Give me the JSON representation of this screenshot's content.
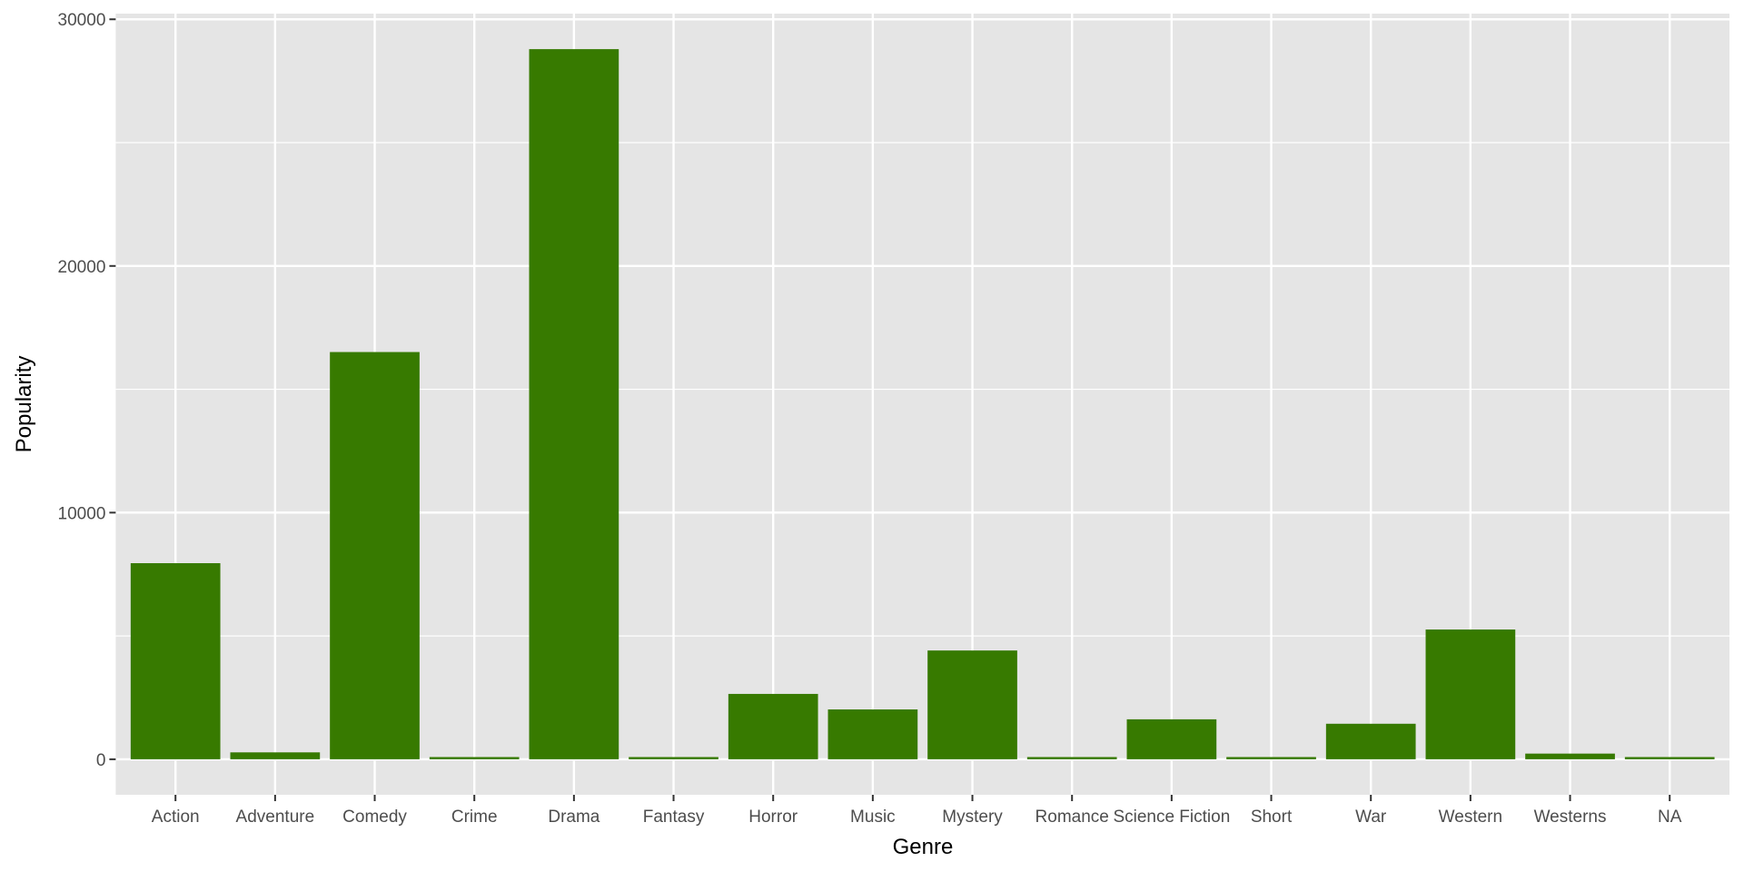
{
  "chart_data": {
    "type": "bar",
    "title": "",
    "xlabel": "Genre",
    "ylabel": "Popularity",
    "categories": [
      "Action",
      "Adventure",
      "Comedy",
      "Crime",
      "Drama",
      "Fantasy",
      "Horror",
      "Music",
      "Mystery",
      "Romance",
      "Science Fiction",
      "Short",
      "War",
      "Western",
      "Westerns",
      "NA"
    ],
    "values": [
      7950,
      280,
      16510,
      90,
      28790,
      90,
      2650,
      2020,
      4410,
      90,
      1620,
      90,
      1440,
      5260,
      230,
      90
    ],
    "yticks": [
      0,
      10000,
      20000,
      30000
    ],
    "ytick_labels": [
      "0",
      "10000",
      "20000",
      "30000"
    ],
    "ylim": [
      -1440,
      30230
    ],
    "grid": true,
    "legend": "none",
    "colors": {
      "bar": "#377A00",
      "panel": "#E5E5E5",
      "grid": "#FFFFFF"
    }
  }
}
